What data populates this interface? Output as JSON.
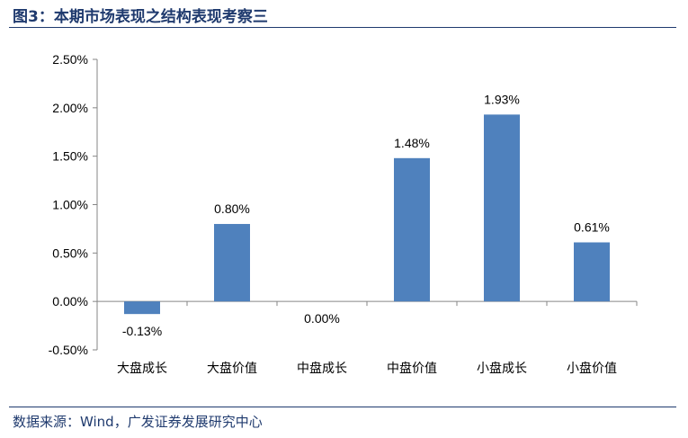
{
  "figure": {
    "title": "图3：本期市场表现之结构表现考察三",
    "source": "数据来源：Wind，广发证券发展研究中心"
  },
  "colors": {
    "bar": "#4F81BD",
    "axis": "#868686",
    "title": "#1F3A6E",
    "text": "#000000"
  },
  "chart_data": {
    "type": "bar",
    "title": "",
    "xlabel": "",
    "ylabel": "",
    "categories": [
      "大盘成长",
      "大盘价值",
      "中盘成长",
      "中盘价值",
      "小盘成长",
      "小盘价值"
    ],
    "values": [
      -0.13,
      0.8,
      0.0,
      1.48,
      1.93,
      0.61
    ],
    "data_labels": [
      "-0.13%",
      "0.80%",
      "0.00%",
      "1.48%",
      "1.93%",
      "0.61%"
    ],
    "y_ticks": [
      -0.5,
      0,
      0.5,
      1.0,
      1.5,
      2.0,
      2.5
    ],
    "y_tick_labels": [
      "-0.50%",
      "0.00%",
      "0.50%",
      "1.00%",
      "1.50%",
      "2.00%",
      "2.50%"
    ],
    "ylim": [
      -0.5,
      2.5
    ],
    "grid": false,
    "legend": "none"
  }
}
